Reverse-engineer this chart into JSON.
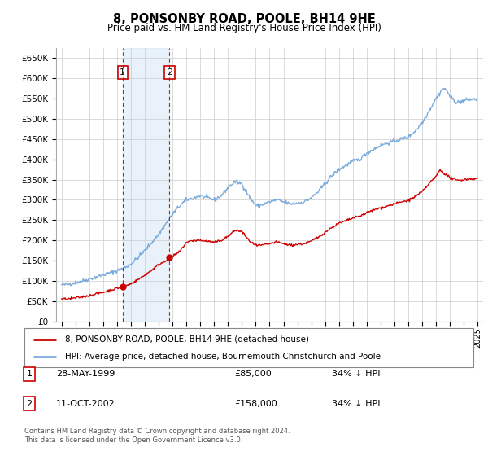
{
  "title": "8, PONSONBY ROAD, POOLE, BH14 9HE",
  "subtitle": "Price paid vs. HM Land Registry's House Price Index (HPI)",
  "legend_line1": "8, PONSONBY ROAD, POOLE, BH14 9HE (detached house)",
  "legend_line2": "HPI: Average price, detached house, Bournemouth Christchurch and Poole",
  "table_row1": [
    "1",
    "28-MAY-1999",
    "£85,000",
    "34% ↓ HPI"
  ],
  "table_row2": [
    "2",
    "11-OCT-2002",
    "£158,000",
    "34% ↓ HPI"
  ],
  "footnote1": "Contains HM Land Registry data © Crown copyright and database right 2024.",
  "footnote2": "This data is licensed under the Open Government Licence v3.0.",
  "hpi_color": "#7aabdb",
  "price_color": "#cc0000",
  "highlight_color": "#ddeeff",
  "box_color": "#cc0000",
  "ylim": [
    0,
    675000
  ],
  "yticks": [
    0,
    50000,
    100000,
    150000,
    200000,
    250000,
    300000,
    350000,
    400000,
    450000,
    500000,
    550000,
    600000,
    650000
  ],
  "xlim_start": 1994.6,
  "xlim_end": 2025.4,
  "sale1_x": 1999.4,
  "sale1_y": 85000,
  "sale2_x": 2002.78,
  "sale2_y": 158000,
  "background": "#ffffff",
  "grid_color": "#cccccc"
}
